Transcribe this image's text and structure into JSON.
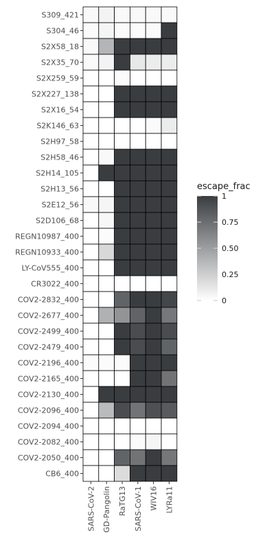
{
  "chart_data": {
    "type": "heatmap",
    "columns": [
      "SARS-CoV-2",
      "GD-Pangolin",
      "RaTG13",
      "SARS-CoV-1",
      "WIV16",
      "LYRa11"
    ],
    "rows": [
      "S309_421",
      "S304_46",
      "S2X58_18",
      "S2X35_70",
      "S2X259_59",
      "S2X227_138",
      "S2X16_54",
      "S2K146_63",
      "S2H97_58",
      "S2H58_46",
      "S2H14_105",
      "S2H13_56",
      "S2E12_56",
      "S2D106_68",
      "REGN10987_400",
      "REGN10933_400",
      "LY-CoV555_400",
      "CR3022_400",
      "COV2-2832_400",
      "COV2-2677_400",
      "COV2-2499_400",
      "COV2-2479_400",
      "COV2-2196_400",
      "COV2-2165_400",
      "COV2-2130_400",
      "COV2-2096_400",
      "COV2-2094_400",
      "COV2-2082_400",
      "COV2-2050_400",
      "CB6_400"
    ],
    "values": [
      [
        0.03,
        0.06,
        0.03,
        0.03,
        0.03,
        0.03
      ],
      [
        0.02,
        0.05,
        0.02,
        0.02,
        0.02,
        1.0
      ],
      [
        0.03,
        0.38,
        1.0,
        1.0,
        1.0,
        1.0
      ],
      [
        0.03,
        0.06,
        1.0,
        0.12,
        0.1,
        0.1
      ],
      [
        0.0,
        0.0,
        0.02,
        0.0,
        0.0,
        0.0
      ],
      [
        0.0,
        0.0,
        1.0,
        1.0,
        1.0,
        1.0
      ],
      [
        0.0,
        0.0,
        1.0,
        1.0,
        1.0,
        1.0
      ],
      [
        0.0,
        0.0,
        0.0,
        0.0,
        0.02,
        0.1
      ],
      [
        0.0,
        0.0,
        0.0,
        0.0,
        0.0,
        0.0
      ],
      [
        0.0,
        0.03,
        1.0,
        1.0,
        1.0,
        1.0
      ],
      [
        0.0,
        1.0,
        1.0,
        1.0,
        1.0,
        1.0
      ],
      [
        0.0,
        0.0,
        1.0,
        1.0,
        1.0,
        1.0
      ],
      [
        0.03,
        0.05,
        1.0,
        1.0,
        1.0,
        1.0
      ],
      [
        0.0,
        0.04,
        1.0,
        1.0,
        1.0,
        1.0
      ],
      [
        0.0,
        0.02,
        1.0,
        1.0,
        1.0,
        1.0
      ],
      [
        0.0,
        0.2,
        1.0,
        1.0,
        1.0,
        1.0
      ],
      [
        0.0,
        0.0,
        1.0,
        1.0,
        1.0,
        1.0
      ],
      [
        0.0,
        0.0,
        0.0,
        0.0,
        0.0,
        0.0
      ],
      [
        0.0,
        0.0,
        0.8,
        1.0,
        1.0,
        0.95
      ],
      [
        0.0,
        0.4,
        0.55,
        0.8,
        1.0,
        0.7
      ],
      [
        0.0,
        0.0,
        1.0,
        0.92,
        1.0,
        0.92
      ],
      [
        0.0,
        0.0,
        1.0,
        0.92,
        1.0,
        0.8
      ],
      [
        0.02,
        0.02,
        0.02,
        1.0,
        1.0,
        1.0
      ],
      [
        0.0,
        0.0,
        0.0,
        1.0,
        1.0,
        0.72
      ],
      [
        0.0,
        1.0,
        1.0,
        1.0,
        1.0,
        1.0
      ],
      [
        0.0,
        0.35,
        0.92,
        0.72,
        0.9,
        0.85
      ],
      [
        0.0,
        0.0,
        0.0,
        0.0,
        0.0,
        0.0
      ],
      [
        0.0,
        0.0,
        0.0,
        0.02,
        0.05,
        0.0
      ],
      [
        0.0,
        0.0,
        0.8,
        0.72,
        1.0,
        0.7
      ],
      [
        0.0,
        0.0,
        0.18,
        1.0,
        1.0,
        1.0
      ]
    ],
    "legend": {
      "title": "escape_frac",
      "ticks": [
        1,
        0.75,
        0.5,
        0.25,
        0
      ],
      "tick_labels": [
        "1",
        "0.75",
        "0.50",
        "0.25",
        "0"
      ],
      "low_color": "#ffffff",
      "high_color": "#3a3d40",
      "placement": "right"
    },
    "range": [
      0,
      1
    ],
    "grid": false,
    "cell_border_color": "#000000"
  }
}
